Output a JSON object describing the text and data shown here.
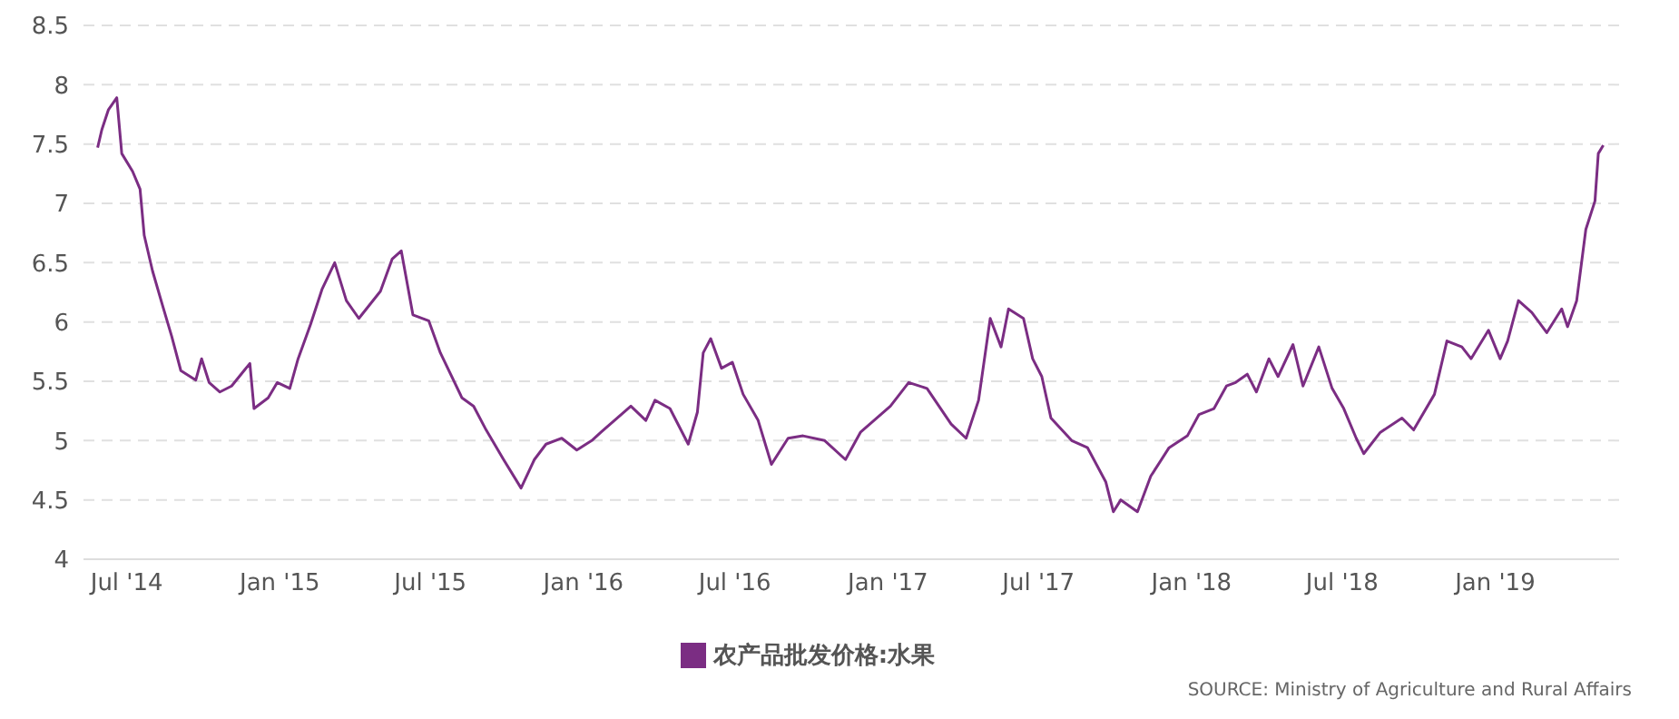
{
  "chart_data": {
    "type": "line",
    "x": [
      "2014-05-27",
      "2014-06-01",
      "2014-06-09",
      "2014-06-19",
      "2014-06-25",
      "2014-07-08",
      "2014-07-17",
      "2014-07-22",
      "2014-08-01",
      "2014-08-13",
      "2014-08-24",
      "2014-09-04",
      "2014-09-22",
      "2014-09-29",
      "2014-10-08",
      "2014-10-21",
      "2014-11-04",
      "2014-11-19",
      "2014-11-26",
      "2014-12-01",
      "2014-12-18",
      "2014-12-29",
      "2015-01-13",
      "2015-01-23",
      "2015-02-07",
      "2015-02-21",
      "2015-03-08",
      "2015-03-22",
      "2015-04-06",
      "2015-05-02",
      "2015-05-16",
      "2015-05-27",
      "2015-06-10",
      "2015-06-29",
      "2015-07-13",
      "2015-08-08",
      "2015-08-22",
      "2015-09-06",
      "2015-09-27",
      "2015-10-18",
      "2015-11-03",
      "2015-11-17",
      "2015-12-06",
      "2015-12-24",
      "2016-01-11",
      "2016-01-22",
      "2016-02-27",
      "2016-03-16",
      "2016-03-27",
      "2016-04-14",
      "2016-05-06",
      "2016-05-17",
      "2016-05-24",
      "2016-06-02",
      "2016-06-15",
      "2016-06-28",
      "2016-07-11",
      "2016-07-29",
      "2016-08-14",
      "2016-09-03",
      "2016-09-21",
      "2016-10-17",
      "2016-11-11",
      "2016-11-29",
      "2017-01-04",
      "2017-01-26",
      "2017-02-17",
      "2017-03-18",
      "2017-04-05",
      "2017-04-20",
      "2017-05-04",
      "2017-05-17",
      "2017-05-26",
      "2017-06-13",
      "2017-06-24",
      "2017-07-05",
      "2017-07-16",
      "2017-08-10",
      "2017-08-29",
      "2017-09-20",
      "2017-09-29",
      "2017-10-08",
      "2017-10-28",
      "2017-11-13",
      "2017-12-05",
      "2017-12-27",
      "2018-01-10",
      "2018-01-28",
      "2018-02-12",
      "2018-02-23",
      "2018-03-09",
      "2018-03-20",
      "2018-04-04",
      "2018-04-15",
      "2018-05-03",
      "2018-05-15",
      "2018-06-03",
      "2018-06-19",
      "2018-07-03",
      "2018-07-18",
      "2018-07-27",
      "2018-08-16",
      "2018-09-11",
      "2018-09-25",
      "2018-10-20",
      "2018-11-04",
      "2018-11-22",
      "2018-12-03",
      "2018-12-24",
      "2019-01-07",
      "2019-01-16",
      "2019-01-29",
      "2019-02-14",
      "2019-03-04",
      "2019-03-22",
      "2019-03-29",
      "2019-04-09",
      "2019-04-20",
      "2019-05-01",
      "2019-05-05",
      "2019-05-11"
    ],
    "series": [
      {
        "name": "农产品批发价格:水果",
        "color": "#7b2d83",
        "values": [
          7.47,
          7.62,
          7.79,
          7.89,
          7.42,
          7.27,
          7.12,
          6.73,
          6.43,
          6.14,
          5.88,
          5.59,
          5.51,
          5.69,
          5.49,
          5.41,
          5.46,
          5.59,
          5.65,
          5.27,
          5.36,
          5.49,
          5.44,
          5.69,
          5.98,
          6.28,
          6.5,
          6.18,
          6.03,
          6.26,
          6.53,
          6.6,
          6.06,
          6.01,
          5.74,
          5.36,
          5.29,
          5.09,
          4.84,
          4.6,
          4.84,
          4.97,
          5.02,
          4.92,
          5.0,
          5.07,
          5.29,
          5.17,
          5.34,
          5.27,
          4.97,
          5.24,
          5.74,
          5.86,
          5.61,
          5.66,
          5.39,
          5.17,
          4.8,
          5.02,
          5.04,
          5.0,
          4.84,
          5.07,
          5.29,
          5.49,
          5.44,
          5.14,
          5.02,
          5.34,
          6.03,
          5.79,
          6.11,
          6.03,
          5.69,
          5.54,
          5.19,
          5.0,
          4.94,
          4.65,
          4.4,
          4.5,
          4.4,
          4.7,
          4.94,
          5.04,
          5.22,
          5.27,
          5.46,
          5.49,
          5.56,
          5.41,
          5.69,
          5.54,
          5.81,
          5.46,
          5.79,
          5.44,
          5.27,
          5.02,
          4.89,
          5.07,
          5.19,
          5.09,
          5.39,
          5.84,
          5.79,
          5.69,
          5.93,
          5.69,
          5.84,
          6.18,
          6.08,
          5.91,
          6.11,
          5.96,
          6.18,
          6.78,
          7.02,
          7.42,
          7.49
        ]
      }
    ],
    "xlim": [
      "2014-05-10",
      "2019-05-30"
    ],
    "xticks": [
      {
        "value": "2014-07-01",
        "label": "Jul '14"
      },
      {
        "value": "2015-01-01",
        "label": "Jan '15"
      },
      {
        "value": "2015-07-01",
        "label": "Jul '15"
      },
      {
        "value": "2016-01-01",
        "label": "Jan '16"
      },
      {
        "value": "2016-07-01",
        "label": "Jul '16"
      },
      {
        "value": "2017-01-01",
        "label": "Jan '17"
      },
      {
        "value": "2017-07-01",
        "label": "Jul '17"
      },
      {
        "value": "2018-01-01",
        "label": "Jan '18"
      },
      {
        "value": "2018-07-01",
        "label": "Jul '18"
      },
      {
        "value": "2019-01-01",
        "label": "Jan '19"
      }
    ],
    "ylim": [
      4,
      8.5
    ],
    "yticks": [
      4,
      4.5,
      5,
      5.5,
      6,
      6.5,
      7,
      7.5,
      8,
      8.5
    ],
    "grid": "y",
    "legend": "bottom",
    "marker": "none",
    "line_style": "solid",
    "annotations": [
      "SOURCE: Ministry of Agriculture and Rural Affairs"
    ]
  }
}
